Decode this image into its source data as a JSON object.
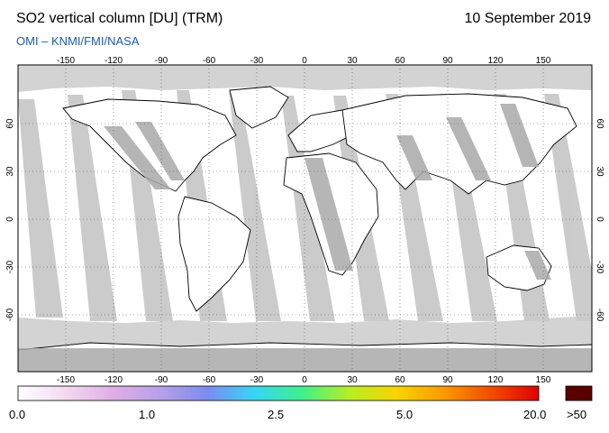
{
  "header": {
    "title": "SO2 vertical column [DU] (TRM)",
    "date": "10 September 2019",
    "source": "OMI  –  KNMI/FMI/NASA"
  },
  "map": {
    "lon_ticks": [
      "-150",
      "-120",
      "-90",
      "-60",
      "-30",
      "0",
      "30",
      "60",
      "90",
      "120",
      "150"
    ],
    "lat_ticks": [
      "60",
      "30",
      "0",
      "-30",
      "-60"
    ],
    "grid": true,
    "colors": {
      "no_data": "#d3d3d3",
      "swath_gap": "#c9c9c9",
      "land_gap": "#a9a9a9",
      "measured_low": "#ffffff",
      "coastline": "#000000"
    }
  },
  "colorbar": {
    "labels": [
      "0.0",
      "1.0",
      "2.5",
      "5.0",
      "20.0"
    ],
    "overflow_label": ">50",
    "stops": [
      "#ffffff",
      "#f3d9f0",
      "#e0aee6",
      "#b7a0e8",
      "#7c8cf0",
      "#36d6f5",
      "#3ef08a",
      "#b8ee24",
      "#f8d400",
      "#f89a00",
      "#f24b00",
      "#e00000"
    ],
    "overflow_color": "#5a0000"
  }
}
